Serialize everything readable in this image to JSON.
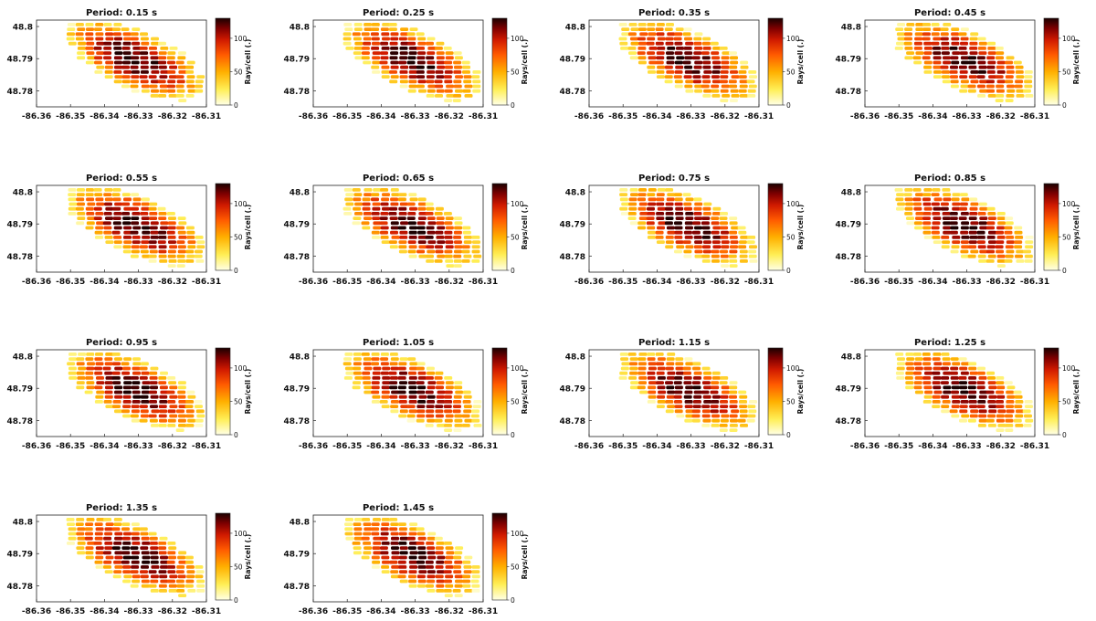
{
  "chart_data": [
    {
      "type": "heatmap",
      "title": "Period: 0.15 s",
      "colorbar_label": "Rays/cell (.)",
      "vmin": 0,
      "vmax": 130,
      "colorbar_ticks": [
        "0",
        "50",
        "100"
      ],
      "xlim": [
        -86.36,
        -86.31
      ],
      "ylim": [
        48.775,
        48.802
      ],
      "x_ticks": [
        "-86.36",
        "-86.35",
        "-86.34",
        "-86.33",
        "-86.32",
        "-86.31"
      ],
      "y_ticks": [
        "48.78",
        "48.79",
        "48.8"
      ],
      "colormap": "hot (reversed)"
    },
    {
      "type": "heatmap",
      "title": "Period: 0.25 s",
      "colorbar_label": "Rays/cell (.)",
      "vmin": 0,
      "vmax": 130,
      "colorbar_ticks": [
        "0",
        "50",
        "100"
      ],
      "xlim": [
        -86.36,
        -86.31
      ],
      "ylim": [
        48.775,
        48.802
      ],
      "x_ticks": [
        "-86.36",
        "-86.35",
        "-86.34",
        "-86.33",
        "-86.32",
        "-86.31"
      ],
      "y_ticks": [
        "48.78",
        "48.79",
        "48.8"
      ],
      "colormap": "hot (reversed)"
    },
    {
      "type": "heatmap",
      "title": "Period: 0.35 s",
      "colorbar_label": "Rays/cell (.)",
      "vmin": 0,
      "vmax": 130,
      "colorbar_ticks": [
        "0",
        "50",
        "100"
      ],
      "xlim": [
        -86.36,
        -86.31
      ],
      "ylim": [
        48.775,
        48.802
      ],
      "x_ticks": [
        "-86.36",
        "-86.35",
        "-86.34",
        "-86.33",
        "-86.32",
        "-86.31"
      ],
      "y_ticks": [
        "48.78",
        "48.79",
        "48.8"
      ],
      "colormap": "hot (reversed)"
    },
    {
      "type": "heatmap",
      "title": "Period: 0.45 s",
      "colorbar_label": "Rays/cell (.)",
      "vmin": 0,
      "vmax": 130,
      "colorbar_ticks": [
        "0",
        "50",
        "100"
      ],
      "xlim": [
        -86.36,
        -86.31
      ],
      "ylim": [
        48.775,
        48.802
      ],
      "x_ticks": [
        "-86.36",
        "-86.35",
        "-86.34",
        "-86.33",
        "-86.32",
        "-86.31"
      ],
      "y_ticks": [
        "48.78",
        "48.79",
        "48.8"
      ],
      "colormap": "hot (reversed)"
    },
    {
      "type": "heatmap",
      "title": "Period: 0.55 s",
      "colorbar_label": "Rays/cell (.)",
      "vmin": 0,
      "vmax": 130,
      "colorbar_ticks": [
        "0",
        "50",
        "100"
      ],
      "xlim": [
        -86.36,
        -86.31
      ],
      "ylim": [
        48.775,
        48.802
      ],
      "x_ticks": [
        "-86.36",
        "-86.35",
        "-86.34",
        "-86.33",
        "-86.32",
        "-86.31"
      ],
      "y_ticks": [
        "48.78",
        "48.79",
        "48.8"
      ],
      "colormap": "hot (reversed)"
    },
    {
      "type": "heatmap",
      "title": "Period: 0.65 s",
      "colorbar_label": "Rays/cell (.)",
      "vmin": 0,
      "vmax": 130,
      "colorbar_ticks": [
        "0",
        "50",
        "100"
      ],
      "xlim": [
        -86.36,
        -86.31
      ],
      "ylim": [
        48.775,
        48.802
      ],
      "x_ticks": [
        "-86.36",
        "-86.35",
        "-86.34",
        "-86.33",
        "-86.32",
        "-86.31"
      ],
      "y_ticks": [
        "48.78",
        "48.79",
        "48.8"
      ],
      "colormap": "hot (reversed)"
    },
    {
      "type": "heatmap",
      "title": "Period: 0.75 s",
      "colorbar_label": "Rays/cell (.)",
      "vmin": 0,
      "vmax": 130,
      "colorbar_ticks": [
        "0",
        "50",
        "100"
      ],
      "xlim": [
        -86.36,
        -86.31
      ],
      "ylim": [
        48.775,
        48.802
      ],
      "x_ticks": [
        "-86.36",
        "-86.35",
        "-86.34",
        "-86.33",
        "-86.32",
        "-86.31"
      ],
      "y_ticks": [
        "48.78",
        "48.79",
        "48.8"
      ],
      "colormap": "hot (reversed)"
    },
    {
      "type": "heatmap",
      "title": "Period: 0.85 s",
      "colorbar_label": "Rays/cell (.)",
      "vmin": 0,
      "vmax": 130,
      "colorbar_ticks": [
        "0",
        "50",
        "100"
      ],
      "xlim": [
        -86.36,
        -86.31
      ],
      "ylim": [
        48.775,
        48.802
      ],
      "x_ticks": [
        "-86.36",
        "-86.35",
        "-86.34",
        "-86.33",
        "-86.32",
        "-86.31"
      ],
      "y_ticks": [
        "48.78",
        "48.79",
        "48.8"
      ],
      "colormap": "hot (reversed)"
    },
    {
      "type": "heatmap",
      "title": "Period: 0.95 s",
      "colorbar_label": "Rays/cell (.)",
      "vmin": 0,
      "vmax": 130,
      "colorbar_ticks": [
        "0",
        "50",
        "100"
      ],
      "xlim": [
        -86.36,
        -86.31
      ],
      "ylim": [
        48.775,
        48.802
      ],
      "x_ticks": [
        "-86.36",
        "-86.35",
        "-86.34",
        "-86.33",
        "-86.32",
        "-86.31"
      ],
      "y_ticks": [
        "48.78",
        "48.79",
        "48.8"
      ],
      "colormap": "hot (reversed)"
    },
    {
      "type": "heatmap",
      "title": "Period: 1.05 s",
      "colorbar_label": "Rays/cell (.)",
      "vmin": 0,
      "vmax": 130,
      "colorbar_ticks": [
        "0",
        "50",
        "100"
      ],
      "xlim": [
        -86.36,
        -86.31
      ],
      "ylim": [
        48.775,
        48.802
      ],
      "x_ticks": [
        "-86.36",
        "-86.35",
        "-86.34",
        "-86.33",
        "-86.32",
        "-86.31"
      ],
      "y_ticks": [
        "48.78",
        "48.79",
        "48.8"
      ],
      "colormap": "hot (reversed)"
    },
    {
      "type": "heatmap",
      "title": "Period: 1.15 s",
      "colorbar_label": "Rays/cell (.)",
      "vmin": 0,
      "vmax": 130,
      "colorbar_ticks": [
        "0",
        "50",
        "100"
      ],
      "xlim": [
        -86.36,
        -86.31
      ],
      "ylim": [
        48.775,
        48.802
      ],
      "x_ticks": [
        "-86.36",
        "-86.35",
        "-86.34",
        "-86.33",
        "-86.32",
        "-86.31"
      ],
      "y_ticks": [
        "48.78",
        "48.79",
        "48.8"
      ],
      "colormap": "hot (reversed)"
    },
    {
      "type": "heatmap",
      "title": "Period: 1.25 s",
      "colorbar_label": "Rays/cell (.)",
      "vmin": 0,
      "vmax": 130,
      "colorbar_ticks": [
        "0",
        "50",
        "100"
      ],
      "xlim": [
        -86.36,
        -86.31
      ],
      "ylim": [
        48.775,
        48.802
      ],
      "x_ticks": [
        "-86.36",
        "-86.35",
        "-86.34",
        "-86.33",
        "-86.32",
        "-86.31"
      ],
      "y_ticks": [
        "48.78",
        "48.79",
        "48.8"
      ],
      "colormap": "hot (reversed)"
    },
    {
      "type": "heatmap",
      "title": "Period: 1.35 s",
      "colorbar_label": "Rays/cell (.)",
      "vmin": 0,
      "vmax": 130,
      "colorbar_ticks": [
        "0",
        "50",
        "100"
      ],
      "xlim": [
        -86.36,
        -86.31
      ],
      "ylim": [
        48.775,
        48.802
      ],
      "x_ticks": [
        "-86.36",
        "-86.35",
        "-86.34",
        "-86.33",
        "-86.32",
        "-86.31"
      ],
      "y_ticks": [
        "48.78",
        "48.79",
        "48.8"
      ],
      "colormap": "hot (reversed)"
    },
    {
      "type": "heatmap",
      "title": "Period: 1.45 s",
      "colorbar_label": "Rays/cell (.)",
      "vmin": 0,
      "vmax": 130,
      "colorbar_ticks": [
        "0",
        "50",
        "100"
      ],
      "xlim": [
        -86.36,
        -86.31
      ],
      "ylim": [
        48.775,
        48.802
      ],
      "x_ticks": [
        "-86.36",
        "-86.35",
        "-86.34",
        "-86.33",
        "-86.32",
        "-86.31"
      ],
      "y_ticks": [
        "48.78",
        "48.79",
        "48.8"
      ],
      "colormap": "hot (reversed)"
    }
  ]
}
